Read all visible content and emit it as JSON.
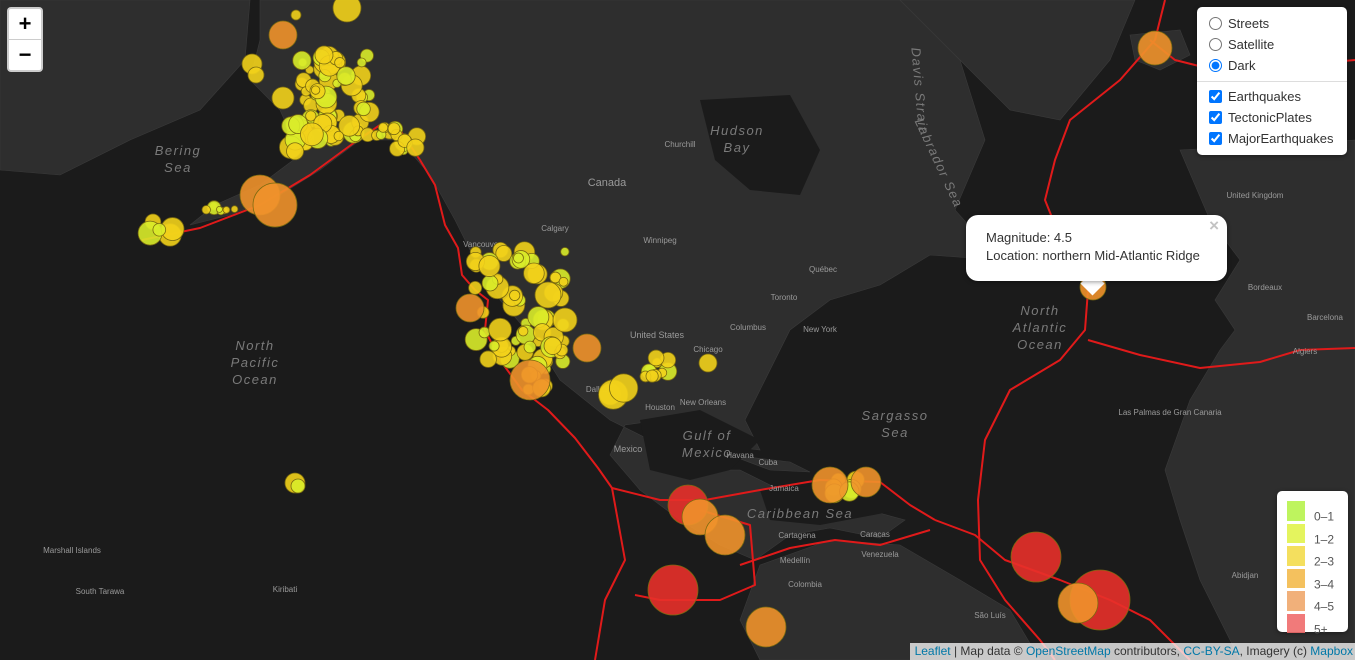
{
  "zoom_controls": {
    "zoom_in": "+",
    "zoom_out": "−"
  },
  "layer_control": {
    "base_layers": [
      "Streets",
      "Satellite",
      "Dark"
    ],
    "selected": "Dark",
    "overlays": [
      "Earthquakes",
      "TectonicPlates",
      "MajorEarthquakes"
    ]
  },
  "popup": {
    "lines": [
      "Magnitude: 4.5",
      "Location: northern Mid-Atlantic Ridge"
    ],
    "close": "×"
  },
  "legend": {
    "items": [
      {
        "label": "0–1",
        "color": "#b7f34d"
      },
      {
        "label": "1–2",
        "color": "#e1f34d"
      },
      {
        "label": "2–3",
        "color": "#f3db4d"
      },
      {
        "label": "3–4",
        "color": "#f3ba4d"
      },
      {
        "label": "4–5",
        "color": "#f0a76b"
      },
      {
        "label": "5+",
        "color": "#f06b6b"
      }
    ]
  },
  "attribution": {
    "parts": [
      "Leaflet",
      " | Map data © ",
      "OpenStreetMap",
      " contributors, ",
      "CC-BY-SA",
      ", Imagery (c) ",
      "Mapbox"
    ]
  },
  "map_labels": {
    "oceans": [
      {
        "lines": [
          "North",
          "Pacific",
          "Ocean"
        ]
      },
      {
        "lines": [
          "North",
          "Atlantic",
          "Ocean"
        ]
      },
      {
        "lines": [
          "Bering",
          "Sea"
        ]
      },
      {
        "lines": [
          "Hudson",
          "Bay"
        ]
      },
      {
        "lines": [
          "Sargasso",
          "Sea"
        ]
      },
      {
        "lines": [
          "Caribbean Sea"
        ]
      },
      {
        "lines": [
          "Gulf of",
          "Mexico"
        ]
      },
      {
        "lines": [
          "Labrador Sea"
        ]
      },
      {
        "lines": [
          "Davis Strait"
        ]
      }
    ],
    "places": [
      "Canada",
      "United States",
      "Mexico",
      "Venezuela",
      "Colombia",
      "Cuba",
      "Vancouver",
      "Calgary",
      "Winnipeg",
      "Chicago",
      "Toronto",
      "Québec",
      "New York",
      "Columbus",
      "Houston",
      "New Orleans",
      "Dallas",
      "Havana",
      "Caracas",
      "Cartagena",
      "Medellín",
      "Churchill",
      "Bordeaux",
      "Barcelona",
      "Algiers",
      "United Kingdom",
      "Las Palmas de Gran Canaria",
      "Abidjan",
      "Marshall Islands",
      "Kiribati",
      "South Tarawa",
      "Jamaica",
      "São Luís"
    ]
  }
}
